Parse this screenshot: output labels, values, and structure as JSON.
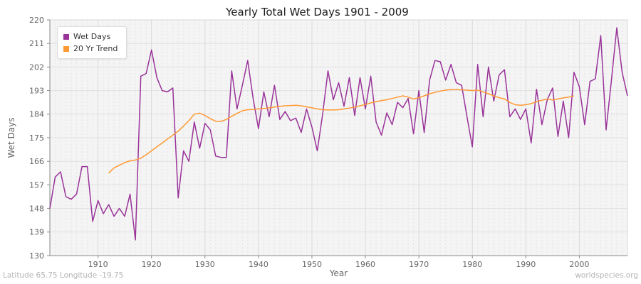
{
  "footer": {
    "location": "Latitude 65.75 Longitude -19.75",
    "site": "worldspecies.org"
  },
  "chart_data": {
    "type": "line",
    "title": "Yearly Total Wet Days 1901 - 2009",
    "xlabel": "Year",
    "ylabel": "Wet Days",
    "xlim": [
      1901,
      2009
    ],
    "ylim": [
      130,
      220
    ],
    "yticks": [
      130,
      139,
      148,
      157,
      166,
      175,
      184,
      193,
      202,
      211,
      220
    ],
    "xticks": [
      1910,
      1920,
      1930,
      1940,
      1950,
      1960,
      1970,
      1980,
      1990,
      2000
    ],
    "grid": "light gray plot background, dashed vertical line per year, solid horizontal line per y-tick",
    "legend_position": "top-left",
    "series": [
      {
        "name": "Wet Days",
        "color": "#993399",
        "x_start": 1901,
        "values": [
          148,
          160,
          162,
          152.5,
          151.5,
          153.5,
          164,
          164,
          143,
          151,
          146,
          149.5,
          145,
          148,
          145,
          153.5,
          136,
          198.5,
          199.5,
          208.5,
          198,
          193,
          192.5,
          194,
          152,
          170,
          166,
          181,
          171,
          180.5,
          178,
          168,
          167.5,
          167.5,
          200.5,
          186,
          195,
          204.5,
          190,
          178.5,
          192.5,
          183,
          195,
          182,
          185,
          181.5,
          182.5,
          177,
          186,
          179,
          170,
          184,
          200.5,
          189.5,
          196,
          187,
          198,
          183.5,
          198,
          186,
          198.5,
          181,
          176,
          184.5,
          180,
          188.5,
          186.5,
          190,
          176.5,
          193,
          177,
          197,
          204.5,
          204,
          197,
          203,
          196,
          195,
          183,
          171.5,
          203,
          183,
          202,
          189,
          199,
          201,
          183,
          186,
          182,
          186,
          173,
          193.5,
          180,
          189.5,
          194,
          175.5,
          189,
          175,
          200,
          194.5,
          180,
          196.5,
          197.5,
          214,
          178,
          197,
          217,
          200,
          191
        ]
      },
      {
        "name": "20 Yr Trend",
        "color": "#FF9933",
        "x_start": 1912,
        "values": [
          161.5,
          163.5,
          164.5,
          165.5,
          166.2,
          166.5,
          167.2,
          168.5,
          170,
          171.5,
          173,
          174.5,
          176,
          177.5,
          179.5,
          181.5,
          184,
          184.4,
          183.5,
          182.3,
          181.3,
          181.2,
          182,
          183.2,
          184.3,
          185.3,
          185.7,
          185.8,
          186,
          186.2,
          186.4,
          186.7,
          187,
          187.2,
          187.3,
          187.4,
          187.2,
          186.8,
          186.4,
          186,
          185.7,
          185.6,
          185.6,
          185.7,
          186,
          186.3,
          186.7,
          187.2,
          187.7,
          188.3,
          188.8,
          189.2,
          189.5,
          190,
          190.5,
          191,
          190.5,
          189.8,
          190.3,
          191,
          191.8,
          192.3,
          192.8,
          193.2,
          193.4,
          193.4,
          193.3,
          193.2,
          193,
          193.2,
          192.5,
          191.8,
          191,
          190.3,
          189.8,
          188.5,
          187.6,
          187.4,
          187.6,
          188,
          188.8,
          189.3,
          189.8,
          189.4,
          189.8,
          190.2,
          190.5,
          191
        ]
      }
    ]
  }
}
